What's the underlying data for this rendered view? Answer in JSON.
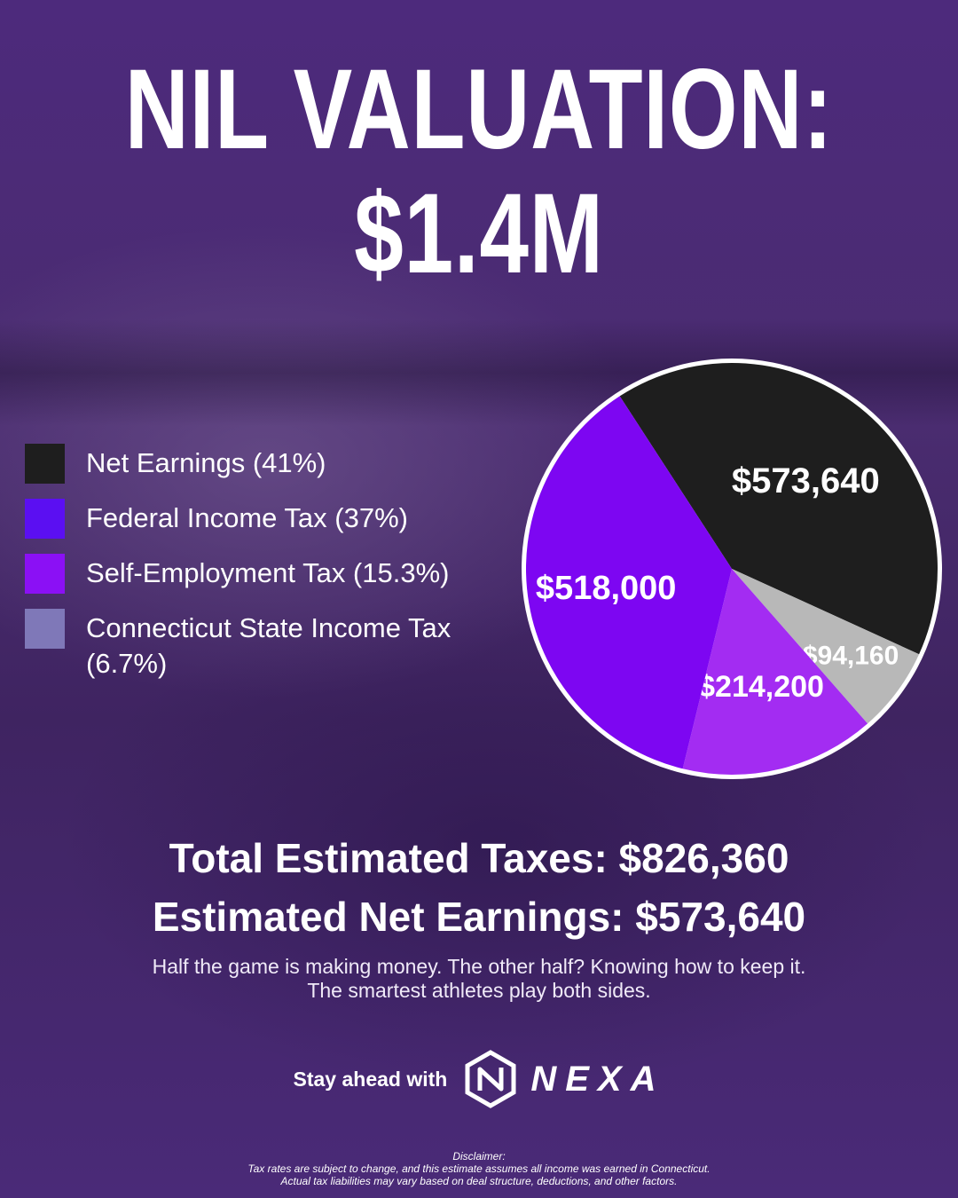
{
  "header": {
    "line1": "NIL VALUATION:",
    "line2": "$1.4M"
  },
  "legend": [
    {
      "label": "Net Earnings (41%)",
      "color": "#1e1e1e"
    },
    {
      "label": "Federal Income Tax (37%)",
      "color": "#5b0ff2"
    },
    {
      "label": "Self-Employment Tax (15.3%)",
      "color": "#8b10f5"
    },
    {
      "label": "Connecticut State Income Tax (6.7%)",
      "color": "#7f78b8"
    }
  ],
  "chart_data": {
    "type": "pie",
    "slices": [
      {
        "name": "Net Earnings",
        "value": 573640,
        "label": "$573,640",
        "color": "#1e1e1e"
      },
      {
        "name": "Connecticut State Income Tax",
        "value": 94160,
        "label": "$94,160",
        "color": "#b8b8b8"
      },
      {
        "name": "Self-Employment Tax",
        "value": 214200,
        "label": "$214,200",
        "color": "#a32cf2"
      },
      {
        "name": "Federal Income Tax",
        "value": 518000,
        "label": "$518,000",
        "color": "#7d06f2"
      }
    ]
  },
  "summary": {
    "total_taxes": "Total Estimated Taxes: $826,360",
    "net_earnings": "Estimated Net Earnings: $573,640",
    "tagline_1": "Half the game is making money. The other half? Knowing how to keep it.",
    "tagline_2": "The smartest athletes play both sides."
  },
  "cta": {
    "text": "Stay ahead with",
    "brand": "NEXA"
  },
  "disclaimer": {
    "heading": "Disclaimer:",
    "line1": "Tax rates are subject to change, and this estimate assumes all income was earned in Connecticut.",
    "line2": "Actual tax liabilities may vary based on deal structure, deductions, and other factors."
  }
}
